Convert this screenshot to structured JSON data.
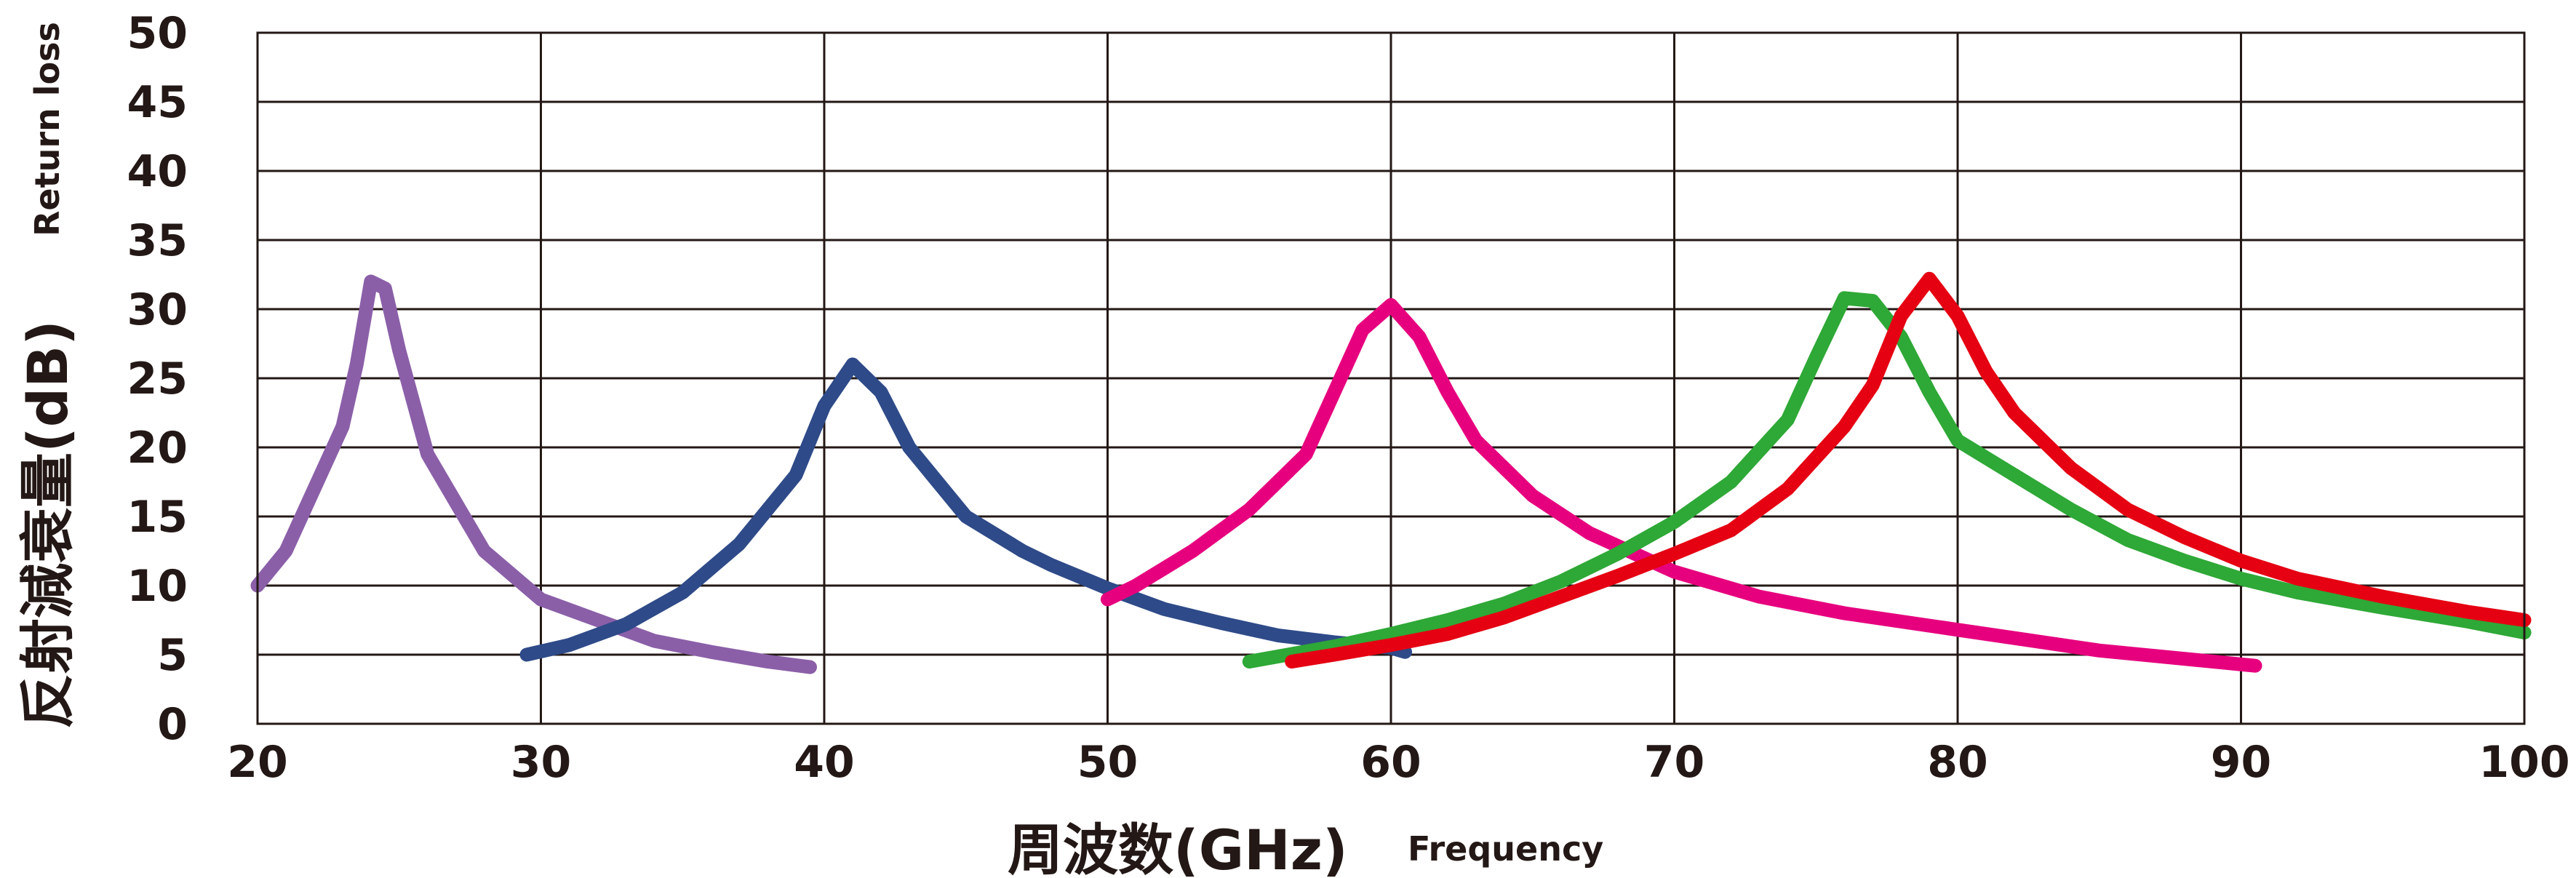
{
  "chart_data": {
    "type": "line",
    "xlabel": "周波数(GHz)",
    "xlabel_en": "Frequency",
    "ylabel": "反射減衰量(dB)",
    "ylabel_en": "Return loss",
    "xlim": [
      20,
      100
    ],
    "ylim": [
      0,
      50
    ],
    "x_ticks": [
      "20",
      "30",
      "40",
      "50",
      "60",
      "70",
      "80",
      "90",
      "100"
    ],
    "y_ticks": [
      "0",
      "5",
      "10",
      "15",
      "20",
      "25",
      "30",
      "35",
      "40",
      "45",
      "50"
    ],
    "grid": true,
    "series": [
      {
        "color": "#8b5fa8",
        "x": [
          20,
          21,
          22,
          23,
          23.5,
          24,
          24.5,
          25,
          26,
          28,
          30,
          32,
          34,
          36,
          38,
          39.5
        ],
        "y": [
          10,
          12.5,
          17,
          21.5,
          26,
          32,
          31.5,
          27,
          19.5,
          12.5,
          9,
          7.5,
          6,
          5.2,
          4.5,
          4.1
        ]
      },
      {
        "color": "#2e4a88",
        "x": [
          29.5,
          31,
          33,
          35,
          37,
          39,
          40,
          41,
          42,
          43,
          45,
          47,
          48,
          50,
          52,
          54,
          56,
          58,
          60,
          60.5
        ],
        "y": [
          5,
          5.7,
          7.2,
          9.5,
          13,
          18,
          23,
          26,
          24,
          20,
          15,
          12.5,
          11.5,
          9.8,
          8.3,
          7.3,
          6.4,
          5.9,
          5.5,
          5.2
        ]
      },
      {
        "color": "#e6007e",
        "x": [
          50,
          51,
          53,
          55,
          57,
          58,
          59,
          60,
          61,
          62,
          63,
          65,
          67,
          70,
          73,
          76,
          80,
          85,
          90,
          90.5
        ],
        "y": [
          9,
          10,
          12.5,
          15.5,
          19.5,
          24,
          28.5,
          30.3,
          28,
          24,
          20.5,
          16.5,
          13.8,
          11,
          9.2,
          8,
          6.8,
          5.3,
          4.3,
          4.2
        ]
      },
      {
        "color": "#2ea836",
        "x": [
          55,
          58,
          60,
          62,
          64,
          66,
          68,
          70,
          72,
          74,
          75,
          76,
          77,
          78,
          79,
          80,
          82,
          84,
          86,
          88,
          90,
          92,
          95,
          98,
          100
        ],
        "y": [
          4.5,
          5.6,
          6.5,
          7.5,
          8.7,
          10.3,
          12.3,
          14.6,
          17.5,
          22,
          26.5,
          30.8,
          30.6,
          28,
          24,
          20.5,
          18,
          15.5,
          13.3,
          11.8,
          10.5,
          9.5,
          8.4,
          7.4,
          6.6
        ]
      },
      {
        "color": "#e50012",
        "x": [
          56.5,
          58,
          60,
          62,
          64,
          66,
          68,
          70,
          72,
          74,
          76,
          77,
          78,
          79,
          80,
          81,
          82,
          84,
          86,
          88,
          90,
          92,
          95,
          98,
          100
        ],
        "y": [
          4.5,
          5,
          5.7,
          6.5,
          7.7,
          9.2,
          10.7,
          12.3,
          14,
          17,
          21.5,
          24.5,
          29.5,
          32.2,
          29.5,
          25.5,
          22.5,
          18.5,
          15.5,
          13.5,
          11.8,
          10.5,
          9.2,
          8.1,
          7.5
        ]
      }
    ]
  }
}
